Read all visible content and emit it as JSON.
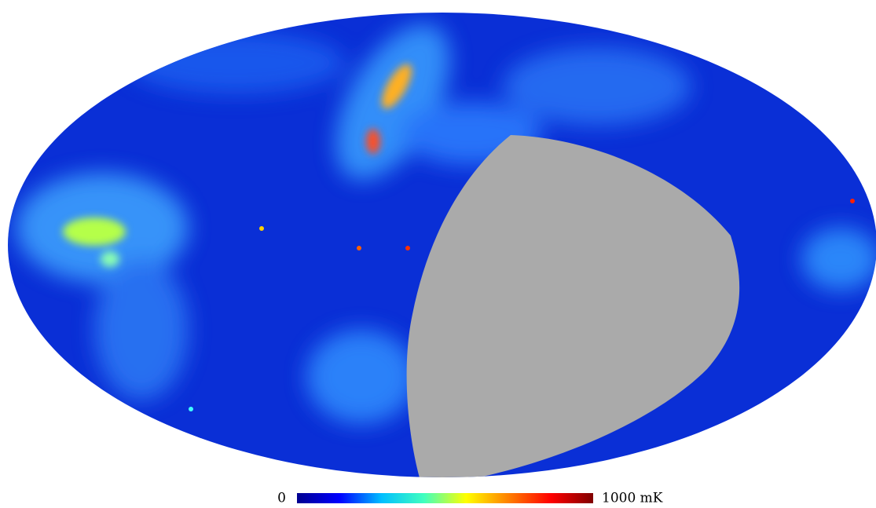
{
  "colorbar": {
    "min_label": "0",
    "max_label": "1000 mK",
    "colors": [
      "#00008f",
      "#0000ff",
      "#00bfff",
      "#40ffbf",
      "#ffff00",
      "#ff8000",
      "#ff0000",
      "#800000"
    ]
  }
}
